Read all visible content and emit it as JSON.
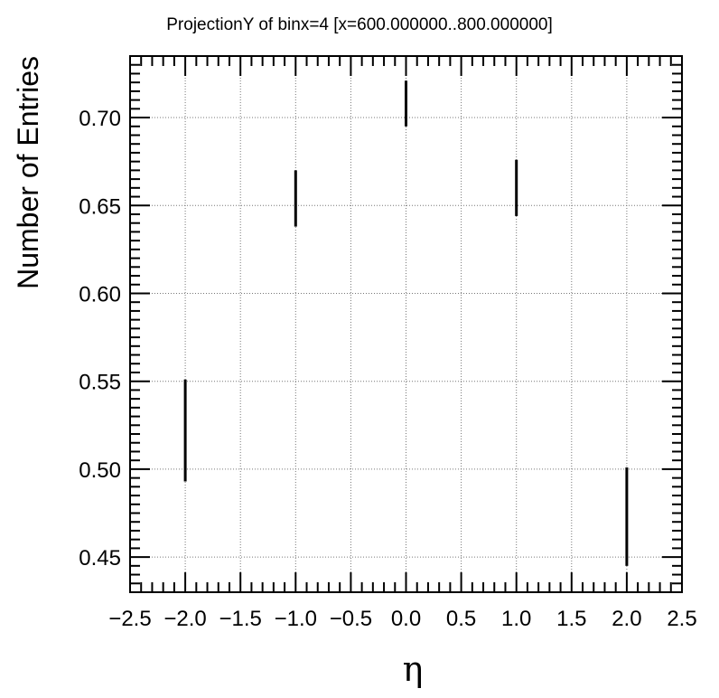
{
  "chart_data": {
    "type": "scatter",
    "title": "ProjectionY of binx=4 [x=600.000000..800.000000]",
    "xlabel": "η",
    "ylabel": "Number of Entries",
    "xlim": [
      -2.5,
      2.5
    ],
    "ylim": [
      0.43,
      0.735
    ],
    "grid": true,
    "x_ticks": [
      -2.5,
      -2.0,
      -1.5,
      -1.0,
      -0.5,
      0.0,
      0.5,
      1.0,
      1.5,
      2.0,
      2.5
    ],
    "x_tick_labels": [
      "−2.5",
      "−2.0",
      "−1.5",
      "−1.0",
      "−0.5",
      "0.0",
      "0.5",
      "1.0",
      "1.5",
      "2.0",
      "2.5"
    ],
    "y_ticks": [
      0.45,
      0.5,
      0.55,
      0.6,
      0.65,
      0.7
    ],
    "y_tick_labels": [
      "0.45",
      "0.50",
      "0.55",
      "0.60",
      "0.65",
      "0.70"
    ],
    "series": [
      {
        "points": [
          {
            "x": -2.0,
            "y": 0.522,
            "err": 0.029
          },
          {
            "x": -1.0,
            "y": 0.654,
            "err": 0.016
          },
          {
            "x": 0.0,
            "y": 0.708,
            "err": 0.013
          },
          {
            "x": 1.0,
            "y": 0.66,
            "err": 0.016
          },
          {
            "x": 2.0,
            "y": 0.473,
            "err": 0.028
          }
        ]
      }
    ]
  }
}
